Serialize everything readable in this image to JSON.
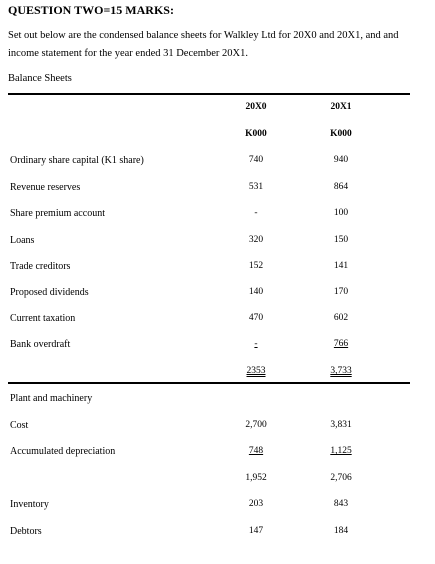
{
  "heading": "QUESTION TWO=15 MARKS:",
  "intro_line1": "Set out below are the condensed balance sheets for Walkley Ltd for 20X0 and 20X1, and and",
  "intro_line2": "income statement for the year ended 31 December 20X1.",
  "section_title": "Balance Sheets",
  "columns": {
    "year1": "20X0",
    "year2": "20X1",
    "unit1": "K000",
    "unit2": "K000"
  },
  "rows": [
    {
      "label": "Ordinary share capital (K1 share)",
      "v1": "740",
      "v2": "940"
    },
    {
      "label": "Revenue reserves",
      "v1": "531",
      "v2": "864"
    },
    {
      "label": "Share premium account",
      "v1": "-",
      "v2": "100"
    },
    {
      "label": "Loans",
      "v1": "320",
      "v2": "150"
    },
    {
      "label": "Trade creditors",
      "v1": "152",
      "v2": "141"
    },
    {
      "label": "Proposed dividends",
      "v1": "140",
      "v2": "170"
    },
    {
      "label": "Current taxation",
      "v1": "470",
      "v2": "602"
    },
    {
      "label": "Bank overdraft",
      "v1": "-",
      "v2": "766"
    }
  ],
  "total": {
    "v1": "2353",
    "v2": "3,733"
  },
  "assets_title": "Plant and machinery",
  "asset_rows": [
    {
      "label": "Cost",
      "v1": "2,700",
      "v2": "3,831"
    },
    {
      "label": "Accumulated depreciation",
      "v1": "748",
      "v2": "1,125"
    },
    {
      "label": "",
      "v1": "1,952",
      "v2": "2,706"
    },
    {
      "label": "Inventory",
      "v1": "203",
      "v2": "843"
    },
    {
      "label": "Debtors",
      "v1": "147",
      "v2": "184"
    }
  ]
}
